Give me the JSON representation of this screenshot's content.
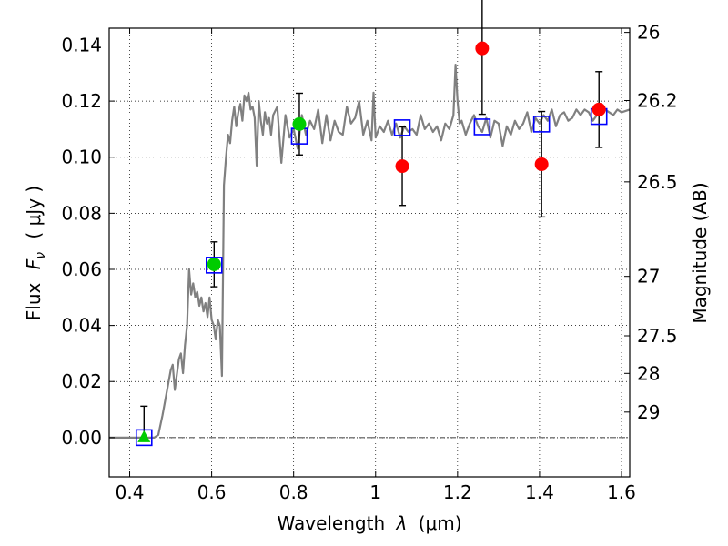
{
  "chart_data": {
    "type": "scatter",
    "xlabel_prefix": "Wavelength",
    "xlabel_lambda": "λ",
    "xlabel_unit": "(μm)",
    "ylabel_prefix": "Flux",
    "ylabel_symbol": "F",
    "ylabel_sub": "ν",
    "ylabel_unit": "( μJy )",
    "y2label": "Magnitude (AB)",
    "xlim": [
      0.35,
      1.62
    ],
    "ylim": [
      -0.014,
      0.146
    ],
    "grid": true,
    "x_ticks": [
      {
        "v": 0.4,
        "label": "0.4"
      },
      {
        "v": 0.6,
        "label": "0.6"
      },
      {
        "v": 0.8,
        "label": "0.8"
      },
      {
        "v": 1.0,
        "label": "1"
      },
      {
        "v": 1.2,
        "label": "1.2"
      },
      {
        "v": 1.4,
        "label": "1.4"
      },
      {
        "v": 1.6,
        "label": "1.6"
      }
    ],
    "y_ticks": [
      {
        "v": 0.0,
        "label": "0.00"
      },
      {
        "v": 0.02,
        "label": "0.02"
      },
      {
        "v": 0.04,
        "label": "0.04"
      },
      {
        "v": 0.06,
        "label": "0.06"
      },
      {
        "v": 0.08,
        "label": "0.08"
      },
      {
        "v": 0.1,
        "label": "0.10"
      },
      {
        "v": 0.12,
        "label": "0.12"
      },
      {
        "v": 0.14,
        "label": "0.14"
      }
    ],
    "y2_ticks": [
      {
        "label": "26",
        "flux": 0.1445
      },
      {
        "label": "26.2",
        "flux": 0.1202
      },
      {
        "label": "26.5",
        "flux": 0.0912
      },
      {
        "label": "27",
        "flux": 0.0575
      },
      {
        "label": "27.5",
        "flux": 0.0363
      },
      {
        "label": "28",
        "flux": 0.0229
      },
      {
        "label": "29",
        "flux": 0.0091
      }
    ],
    "model_sed": {
      "color": "#808080",
      "x": [
        0.35,
        0.46,
        0.47,
        0.48,
        0.49,
        0.5,
        0.505,
        0.51,
        0.52,
        0.525,
        0.53,
        0.535,
        0.54,
        0.545,
        0.55,
        0.555,
        0.56,
        0.565,
        0.57,
        0.575,
        0.58,
        0.585,
        0.59,
        0.595,
        0.6,
        0.605,
        0.61,
        0.615,
        0.62,
        0.625,
        0.63,
        0.635,
        0.64,
        0.645,
        0.65,
        0.655,
        0.66,
        0.665,
        0.67,
        0.675,
        0.68,
        0.685,
        0.69,
        0.695,
        0.7,
        0.705,
        0.71,
        0.715,
        0.72,
        0.725,
        0.73,
        0.735,
        0.74,
        0.745,
        0.75,
        0.76,
        0.77,
        0.78,
        0.79,
        0.8,
        0.81,
        0.82,
        0.83,
        0.84,
        0.85,
        0.86,
        0.87,
        0.88,
        0.89,
        0.9,
        0.91,
        0.92,
        0.93,
        0.94,
        0.95,
        0.96,
        0.97,
        0.98,
        0.99,
        0.995,
        1.0,
        1.01,
        1.02,
        1.03,
        1.04,
        1.05,
        1.06,
        1.07,
        1.08,
        1.09,
        1.1,
        1.11,
        1.12,
        1.13,
        1.14,
        1.15,
        1.16,
        1.17,
        1.18,
        1.19,
        1.195,
        1.2,
        1.205,
        1.21,
        1.22,
        1.23,
        1.24,
        1.25,
        1.26,
        1.27,
        1.28,
        1.29,
        1.3,
        1.31,
        1.32,
        1.33,
        1.34,
        1.35,
        1.36,
        1.37,
        1.38,
        1.39,
        1.4,
        1.41,
        1.42,
        1.43,
        1.44,
        1.45,
        1.46,
        1.47,
        1.48,
        1.49,
        1.5,
        1.51,
        1.52,
        1.53,
        1.54,
        1.55,
        1.56,
        1.57,
        1.58,
        1.59,
        1.6,
        1.62
      ],
      "y": [
        0.0,
        0.0,
        0.001,
        0.008,
        0.016,
        0.024,
        0.026,
        0.017,
        0.028,
        0.03,
        0.023,
        0.033,
        0.04,
        0.06,
        0.051,
        0.055,
        0.05,
        0.052,
        0.047,
        0.05,
        0.045,
        0.048,
        0.043,
        0.05,
        0.042,
        0.04,
        0.035,
        0.042,
        0.04,
        0.022,
        0.09,
        0.1,
        0.108,
        0.105,
        0.113,
        0.118,
        0.111,
        0.116,
        0.119,
        0.113,
        0.122,
        0.12,
        0.123,
        0.117,
        0.118,
        0.114,
        0.097,
        0.12,
        0.113,
        0.108,
        0.116,
        0.112,
        0.114,
        0.108,
        0.115,
        0.118,
        0.098,
        0.115,
        0.107,
        0.11,
        0.103,
        0.115,
        0.108,
        0.113,
        0.11,
        0.117,
        0.105,
        0.115,
        0.106,
        0.113,
        0.109,
        0.108,
        0.118,
        0.112,
        0.114,
        0.12,
        0.108,
        0.113,
        0.106,
        0.123,
        0.107,
        0.111,
        0.109,
        0.113,
        0.108,
        0.112,
        0.107,
        0.111,
        0.109,
        0.11,
        0.108,
        0.115,
        0.11,
        0.112,
        0.109,
        0.111,
        0.106,
        0.112,
        0.11,
        0.115,
        0.133,
        0.12,
        0.112,
        0.113,
        0.108,
        0.112,
        0.115,
        0.111,
        0.109,
        0.114,
        0.107,
        0.113,
        0.112,
        0.104,
        0.111,
        0.108,
        0.113,
        0.11,
        0.112,
        0.116,
        0.109,
        0.114,
        0.112,
        0.115,
        0.113,
        0.117,
        0.111,
        0.115,
        0.116,
        0.113,
        0.114,
        0.117,
        0.115,
        0.117,
        0.116,
        0.113,
        0.115,
        0.116,
        0.117,
        0.116,
        0.115,
        0.117,
        0.116,
        0.117
      ]
    },
    "model_photometry": {
      "color": "#0000ff",
      "x": [
        0.435,
        0.606,
        0.814,
        1.065,
        1.26,
        1.405,
        1.545
      ],
      "y": [
        0.0,
        0.0615,
        0.1075,
        0.1105,
        0.1108,
        0.1118,
        0.1145
      ]
    },
    "detections": {
      "color": "#00cc00",
      "x": [
        0.606,
        0.814
      ],
      "y": [
        0.0618,
        0.1118
      ],
      "yerr": [
        0.008,
        0.011
      ]
    },
    "nondetection": {
      "color": "#00cc00",
      "x": 0.435,
      "y": 0.0,
      "yerr_up": 0.0112
    },
    "other_points": {
      "color": "#ff0000",
      "x": [
        1.065,
        1.26,
        1.405,
        1.545
      ],
      "y": [
        0.0968,
        0.1388,
        0.0975,
        0.117
      ],
      "yerr": [
        0.014,
        0.0235,
        0.0188,
        0.0135
      ]
    }
  }
}
